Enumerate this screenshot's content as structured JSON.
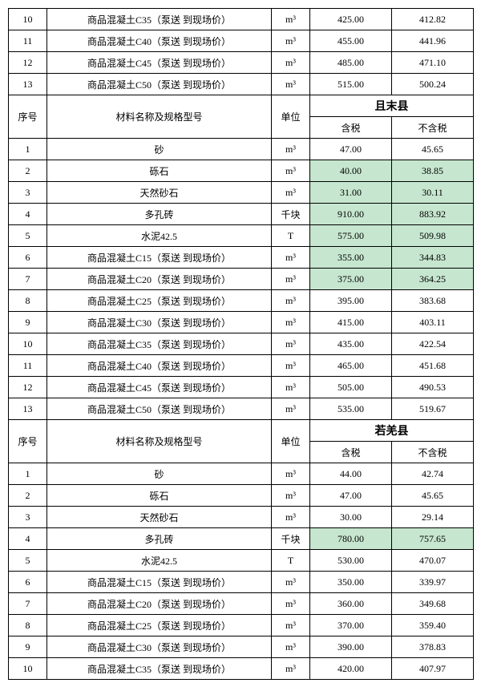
{
  "labels": {
    "seq": "序号",
    "name": "材料名称及规格型号",
    "unit": "单位",
    "tax": "含税",
    "notax": "不含税"
  },
  "counties": {
    "qiemo": "且末县",
    "ruoqiang": "若羌县"
  },
  "colors": {
    "highlight": "#c6e6cf",
    "border": "#000000",
    "text": "#000000",
    "bg": "#ffffff"
  },
  "block1_rows": [
    {
      "n": "10",
      "name": "商品混凝土C35（泵送 到现场价）",
      "unit": "m³",
      "t": "425.00",
      "nt": "412.82",
      "hl": false
    },
    {
      "n": "11",
      "name": "商品混凝土C40（泵送 到现场价）",
      "unit": "m³",
      "t": "455.00",
      "nt": "441.96",
      "hl": false
    },
    {
      "n": "12",
      "name": "商品混凝土C45（泵送 到现场价）",
      "unit": "m³",
      "t": "485.00",
      "nt": "471.10",
      "hl": false
    },
    {
      "n": "13",
      "name": "商品混凝土C50（泵送 到现场价）",
      "unit": "m³",
      "t": "515.00",
      "nt": "500.24",
      "hl": false
    }
  ],
  "block2_rows": [
    {
      "n": "1",
      "name": "砂",
      "unit": "m³",
      "t": "47.00",
      "nt": "45.65",
      "hl": false
    },
    {
      "n": "2",
      "name": "砾石",
      "unit": "m³",
      "t": "40.00",
      "nt": "38.85",
      "hl": true
    },
    {
      "n": "3",
      "name": "天然砂石",
      "unit": "m³",
      "t": "31.00",
      "nt": "30.11",
      "hl": true
    },
    {
      "n": "4",
      "name": "多孔砖",
      "unit": "千块",
      "t": "910.00",
      "nt": "883.92",
      "hl": true
    },
    {
      "n": "5",
      "name": "水泥42.5",
      "unit": "T",
      "t": "575.00",
      "nt": "509.98",
      "hl": true
    },
    {
      "n": "6",
      "name": "商品混凝土C15（泵送 到现场价）",
      "unit": "m³",
      "t": "355.00",
      "nt": "344.83",
      "hl": true
    },
    {
      "n": "7",
      "name": "商品混凝土C20（泵送 到现场价）",
      "unit": "m³",
      "t": "375.00",
      "nt": "364.25",
      "hl": true
    },
    {
      "n": "8",
      "name": "商品混凝土C25（泵送 到现场价）",
      "unit": "m³",
      "t": "395.00",
      "nt": "383.68",
      "hl": false
    },
    {
      "n": "9",
      "name": "商品混凝土C30（泵送 到现场价）",
      "unit": "m³",
      "t": "415.00",
      "nt": "403.11",
      "hl": false
    },
    {
      "n": "10",
      "name": "商品混凝土C35（泵送 到现场价）",
      "unit": "m³",
      "t": "435.00",
      "nt": "422.54",
      "hl": false
    },
    {
      "n": "11",
      "name": "商品混凝土C40（泵送 到现场价）",
      "unit": "m³",
      "t": "465.00",
      "nt": "451.68",
      "hl": false
    },
    {
      "n": "12",
      "name": "商品混凝土C45（泵送 到现场价）",
      "unit": "m³",
      "t": "505.00",
      "nt": "490.53",
      "hl": false
    },
    {
      "n": "13",
      "name": "商品混凝土C50（泵送 到现场价）",
      "unit": "m³",
      "t": "535.00",
      "nt": "519.67",
      "hl": false
    }
  ],
  "block3_rows": [
    {
      "n": "1",
      "name": "砂",
      "unit": "m³",
      "t": "44.00",
      "nt": "42.74",
      "hl": false
    },
    {
      "n": "2",
      "name": "砾石",
      "unit": "m³",
      "t": "47.00",
      "nt": "45.65",
      "hl": false
    },
    {
      "n": "3",
      "name": "天然砂石",
      "unit": "m³",
      "t": "30.00",
      "nt": "29.14",
      "hl": false
    },
    {
      "n": "4",
      "name": "多孔砖",
      "unit": "千块",
      "t": "780.00",
      "nt": "757.65",
      "hl": true
    },
    {
      "n": "5",
      "name": "水泥42.5",
      "unit": "T",
      "t": "530.00",
      "nt": "470.07",
      "hl": false
    },
    {
      "n": "6",
      "name": "商品混凝土C15（泵送 到现场价）",
      "unit": "m³",
      "t": "350.00",
      "nt": "339.97",
      "hl": false
    },
    {
      "n": "7",
      "name": "商品混凝土C20（泵送 到现场价）",
      "unit": "m³",
      "t": "360.00",
      "nt": "349.68",
      "hl": false
    },
    {
      "n": "8",
      "name": "商品混凝土C25（泵送 到现场价）",
      "unit": "m³",
      "t": "370.00",
      "nt": "359.40",
      "hl": false
    },
    {
      "n": "9",
      "name": "商品混凝土C30（泵送 到现场价）",
      "unit": "m³",
      "t": "390.00",
      "nt": "378.83",
      "hl": false
    },
    {
      "n": "10",
      "name": "商品混凝土C35（泵送 到现场价）",
      "unit": "m³",
      "t": "420.00",
      "nt": "407.97",
      "hl": false
    }
  ]
}
